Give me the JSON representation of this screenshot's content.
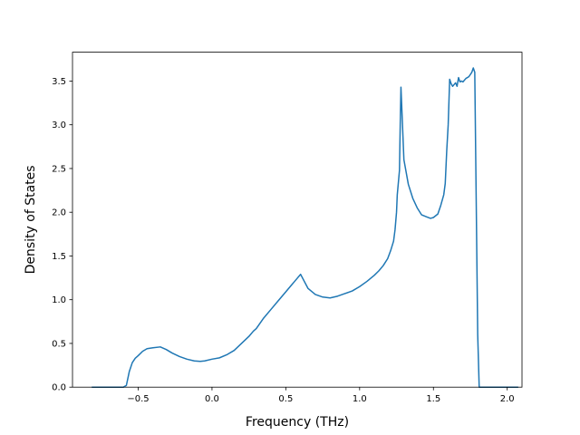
{
  "chart_data": {
    "type": "line",
    "title": "",
    "xlabel": "Frequency (THz)",
    "ylabel": "Density of States",
    "xlim": [
      -0.945,
      2.1
    ],
    "ylim": [
      0.0,
      3.83
    ],
    "grid": false,
    "legend": "none",
    "x_ticks": [
      -0.5,
      0.0,
      0.5,
      1.0,
      1.5,
      2.0
    ],
    "x_tick_labels": [
      "−0.5",
      "0.0",
      "0.5",
      "1.0",
      "1.5",
      "2.0"
    ],
    "y_ticks": [
      0.0,
      0.5,
      1.0,
      1.5,
      2.0,
      2.5,
      3.0,
      3.5
    ],
    "y_tick_labels": [
      "0.0",
      "0.5",
      "1.0",
      "1.5",
      "2.0",
      "2.5",
      "3.0",
      "3.5"
    ],
    "series": [
      {
        "color": "#1f77b4",
        "x": [
          -0.81,
          -0.6,
          -0.58,
          -0.56,
          -0.54,
          -0.52,
          -0.5,
          -0.47,
          -0.44,
          -0.4,
          -0.35,
          -0.31,
          -0.27,
          -0.22,
          -0.17,
          -0.12,
          -0.08,
          -0.05,
          0.0,
          0.05,
          0.1,
          0.15,
          0.2,
          0.25,
          0.28,
          0.3,
          0.35,
          0.4,
          0.45,
          0.5,
          0.54,
          0.56,
          0.58,
          0.6,
          0.65,
          0.7,
          0.75,
          0.8,
          0.85,
          0.9,
          0.95,
          1.0,
          1.05,
          1.1,
          1.13,
          1.16,
          1.19,
          1.21,
          1.23,
          1.24,
          1.25,
          1.255,
          1.27,
          1.275,
          1.28,
          1.3,
          1.33,
          1.36,
          1.39,
          1.42,
          1.45,
          1.48,
          1.5,
          1.53,
          1.55,
          1.57,
          1.58,
          1.59,
          1.6,
          1.61,
          1.62,
          1.63,
          1.64,
          1.65,
          1.66,
          1.67,
          1.68,
          1.69,
          1.7,
          1.72,
          1.74,
          1.76,
          1.77,
          1.78,
          1.8,
          1.81,
          1.82,
          1.83,
          1.85,
          1.95,
          2.07
        ],
        "y": [
          0.0,
          0.0,
          0.02,
          0.18,
          0.28,
          0.33,
          0.36,
          0.41,
          0.44,
          0.45,
          0.46,
          0.43,
          0.39,
          0.35,
          0.32,
          0.3,
          0.295,
          0.3,
          0.32,
          0.335,
          0.37,
          0.42,
          0.5,
          0.58,
          0.64,
          0.67,
          0.79,
          0.89,
          0.99,
          1.09,
          1.17,
          1.21,
          1.25,
          1.29,
          1.13,
          1.06,
          1.03,
          1.02,
          1.04,
          1.07,
          1.1,
          1.15,
          1.21,
          1.28,
          1.33,
          1.39,
          1.47,
          1.56,
          1.67,
          1.8,
          2.0,
          2.2,
          2.48,
          3.0,
          3.43,
          2.6,
          2.32,
          2.16,
          2.05,
          1.97,
          1.95,
          1.93,
          1.94,
          1.98,
          2.08,
          2.2,
          2.33,
          2.7,
          3.0,
          3.52,
          3.47,
          3.44,
          3.46,
          3.48,
          3.44,
          3.54,
          3.49,
          3.5,
          3.49,
          3.53,
          3.55,
          3.6,
          3.65,
          3.6,
          0.6,
          0.0,
          0.0,
          0.0,
          0.0,
          0.0,
          0.0
        ]
      }
    ]
  }
}
